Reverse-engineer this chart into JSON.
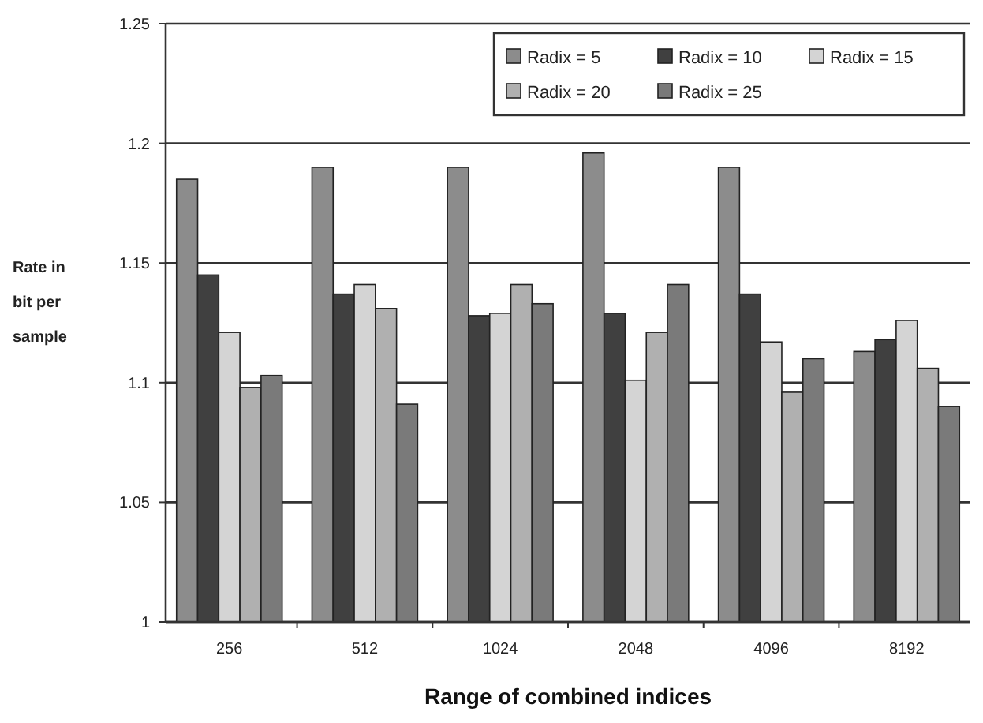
{
  "chart_data": {
    "type": "bar",
    "xlabel": "Range of combined indices",
    "ylabel": "Rate in bit per sample",
    "categories": [
      "256",
      "512",
      "1024",
      "2048",
      "4096",
      "8192"
    ],
    "series": [
      {
        "name": "Radix = 5",
        "color": "#8c8c8c",
        "values": [
          1.185,
          1.19,
          1.19,
          1.196,
          1.19,
          1.113
        ]
      },
      {
        "name": "Radix = 10",
        "color": "#404040",
        "values": [
          1.145,
          1.137,
          1.128,
          1.129,
          1.137,
          1.118
        ]
      },
      {
        "name": "Radix = 15",
        "color": "#d4d4d4",
        "values": [
          1.121,
          1.141,
          1.129,
          1.101,
          1.117,
          1.126
        ]
      },
      {
        "name": "Radix = 20",
        "color": "#b0b0b0",
        "values": [
          1.098,
          1.131,
          1.141,
          1.121,
          1.096,
          1.106
        ]
      },
      {
        "name": "Radix = 25",
        "color": "#7a7a7a",
        "values": [
          1.103,
          1.091,
          1.133,
          1.141,
          1.11,
          1.09
        ]
      }
    ],
    "ylim": [
      1,
      1.25
    ],
    "yticks": [
      1,
      1.05,
      1.1,
      1.15,
      1.2,
      1.25
    ],
    "grid": "y",
    "legend": "top right"
  }
}
